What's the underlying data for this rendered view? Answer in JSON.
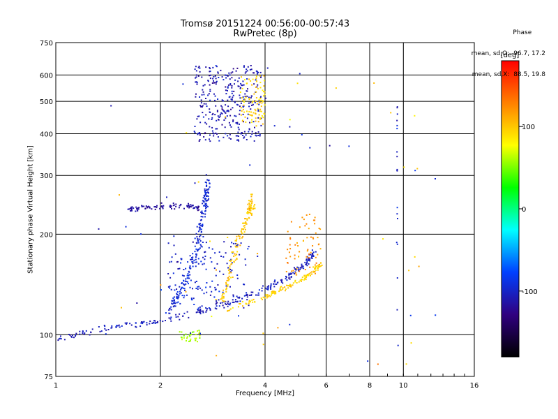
{
  "header": {
    "title_line1": "Tromsø 20151224 00:56:00-00:57:43",
    "title_line2": "RwPretec (8p)"
  },
  "phase_box": {
    "title": "Phase",
    "line_o": "mean, sd,O: -96.7, 17.2",
    "line_x": "mean, sd,X:  88.5, 19.8"
  },
  "chart_data": {
    "type": "scatter",
    "title": "Tromsø 20151224 00:56:00-00:57:43",
    "subtitle": "RwPretec (8p)",
    "xlabel": "Frequency [MHz]",
    "ylabel": "Stationary phase Virtual Height [km]",
    "xscale": "log",
    "yscale": "log",
    "xlim": [
      1,
      16
    ],
    "ylim": [
      75,
      750
    ],
    "xticks": [
      1,
      2,
      4,
      6,
      8,
      10,
      16
    ],
    "xtick_labels": [
      "1",
      "2",
      "4",
      "6",
      "8",
      "10",
      "16"
    ],
    "yticks": [
      75,
      100,
      200,
      300,
      400,
      500,
      600,
      750
    ],
    "ytick_labels": [
      "75",
      "100",
      "200",
      "300",
      "400",
      "500",
      "600",
      "750"
    ],
    "grid": true,
    "colorbar": {
      "label": "[deg]",
      "range": [
        -180,
        180
      ],
      "ticks": [
        100,
        0,
        -100
      ],
      "tick_labels": [
        "100",
        "0",
        "-100"
      ],
      "stops": [
        "#ff0000",
        "#ff8000",
        "#ffff00",
        "#00ff00",
        "#00ffff",
        "#0040ff",
        "#300080",
        "#000000"
      ]
    },
    "clusters": [
      {
        "name": "low O trace",
        "shape": "curve",
        "points": [
          [
            1.0,
            97
          ],
          [
            1.4,
            105
          ],
          [
            2.0,
            110
          ],
          [
            2.6,
            118
          ],
          [
            3.2,
            125
          ],
          [
            4.0,
            137
          ],
          [
            4.6,
            148
          ],
          [
            5.2,
            162
          ],
          [
            5.6,
            178
          ]
        ],
        "spread": 0.025,
        "n": 260,
        "phase": -105
      },
      {
        "name": "mid O cusp",
        "shape": "curve",
        "points": [
          [
            2.1,
            118
          ],
          [
            2.3,
            135
          ],
          [
            2.5,
            165
          ],
          [
            2.6,
            200
          ],
          [
            2.7,
            250
          ],
          [
            2.75,
            290
          ]
        ],
        "spread": 0.03,
        "n": 200,
        "phase": -95
      },
      {
        "name": "spread 2.6-3.5 MHz",
        "shape": "blob",
        "xr": [
          2.1,
          3.6
        ],
        "yr": [
          120,
          190
        ],
        "n": 150,
        "phase": -100
      },
      {
        "name": "Es trace at 240 km",
        "shape": "curve",
        "points": [
          [
            1.6,
            238
          ],
          [
            2.0,
            242
          ],
          [
            2.4,
            244
          ],
          [
            2.6,
            240
          ]
        ],
        "spread": 0.02,
        "n": 90,
        "phase": -115
      },
      {
        "name": "F2 O trace",
        "shape": "blob",
        "xr": [
          2.5,
          3.9
        ],
        "yr": [
          380,
          640
        ],
        "n": 330,
        "phase": -108
      },
      {
        "name": "F2 X trace",
        "shape": "blob",
        "xr": [
          3.4,
          4.0
        ],
        "yr": [
          420,
          600
        ],
        "n": 90,
        "phase": 95
      },
      {
        "name": "mid X trace",
        "shape": "curve",
        "points": [
          [
            3.0,
            125
          ],
          [
            3.2,
            160
          ],
          [
            3.4,
            200
          ],
          [
            3.6,
            230
          ],
          [
            3.7,
            260
          ]
        ],
        "spread": 0.03,
        "n": 140,
        "phase": 100
      },
      {
        "name": "low X trace",
        "shape": "curve",
        "points": [
          [
            3.1,
            118
          ],
          [
            4.0,
            130
          ],
          [
            4.6,
            138
          ],
          [
            5.2,
            148
          ],
          [
            5.8,
            162
          ]
        ],
        "spread": 0.02,
        "n": 130,
        "phase": 95
      },
      {
        "name": "X cusp 5-5.8 MHz",
        "shape": "blob",
        "xr": [
          4.6,
          5.8
        ],
        "yr": [
          150,
          230
        ],
        "n": 70,
        "phase": 120
      },
      {
        "name": "green patch near 2.4 MHz",
        "shape": "blob",
        "xr": [
          2.25,
          2.6
        ],
        "yr": [
          95,
          103
        ],
        "n": 35,
        "phase": 60
      },
      {
        "name": "vertical line 9.6 MHz",
        "shape": "vline",
        "x": 9.6,
        "yr": [
          110,
          540
        ],
        "n": 18,
        "phase": -100
      },
      {
        "name": "scattered noise",
        "shape": "noise",
        "xr": [
          1.2,
          13
        ],
        "yr": [
          80,
          650
        ],
        "n": 70,
        "phase": 0
      }
    ]
  }
}
